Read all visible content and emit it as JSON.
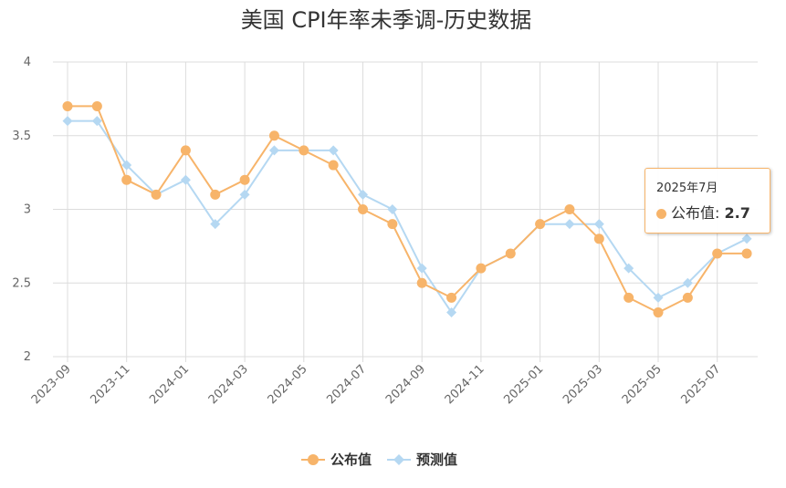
{
  "chart_data": {
    "type": "line",
    "title": "美国 CPI年率未季调-历史数据",
    "x": [
      "2023-09",
      "2023-10",
      "2023-11",
      "2023-12",
      "2024-01",
      "2024-02",
      "2024-03",
      "2024-04",
      "2024-05",
      "2024-06",
      "2024-07",
      "2024-08",
      "2024-09",
      "2024-10",
      "2024-11",
      "2024-12",
      "2025-01",
      "2025-02",
      "2025-03",
      "2025-04",
      "2025-05",
      "2025-06",
      "2025-07",
      "2025-08"
    ],
    "x_tick_labels": [
      "2023-09",
      "2023-11",
      "2024-01",
      "2024-03",
      "2024-05",
      "2024-07",
      "2024-09",
      "2024-11",
      "2025-01",
      "2025-03",
      "2025-05",
      "2025-07"
    ],
    "y_tick_labels": [
      "2",
      "2.5",
      "3",
      "3.5",
      "4"
    ],
    "ylim": [
      2,
      4
    ],
    "grid": true,
    "legend_position": "bottom-center",
    "series": [
      {
        "name": "公布值",
        "color": "#f7b46a",
        "marker": "circle",
        "values": [
          3.7,
          3.7,
          3.2,
          3.1,
          3.4,
          3.1,
          3.2,
          3.5,
          3.4,
          3.3,
          3.0,
          2.9,
          2.5,
          2.4,
          2.6,
          2.7,
          2.9,
          3.0,
          2.8,
          2.4,
          2.3,
          2.4,
          2.7,
          2.7
        ]
      },
      {
        "name": "预测值",
        "color": "#b5d8f2",
        "marker": "diamond",
        "values": [
          3.6,
          3.6,
          3.3,
          3.1,
          3.2,
          2.9,
          3.1,
          3.4,
          3.4,
          3.4,
          3.1,
          3.0,
          2.6,
          2.3,
          2.6,
          2.7,
          2.9,
          2.9,
          2.9,
          2.6,
          2.4,
          2.5,
          2.7,
          2.8
        ]
      }
    ],
    "tooltip": {
      "title": "2025年7月",
      "series_name": "公布值",
      "label": "公布值: ",
      "value": "2.7"
    }
  }
}
